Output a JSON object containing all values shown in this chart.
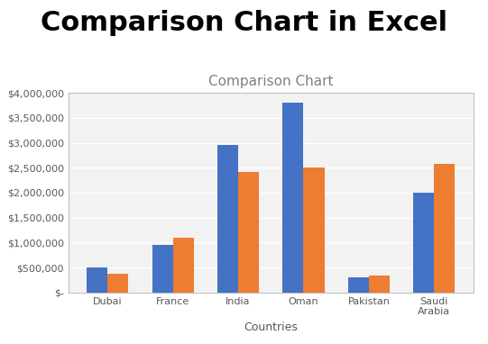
{
  "title_main": "Comparison Chart in Excel",
  "title_chart": "Comparison Chart",
  "xlabel": "Countries",
  "categories": [
    "Dubai",
    "France",
    "India",
    "Oman",
    "Pakistan",
    "Saudi\nArabia"
  ],
  "series1": [
    500000,
    950000,
    2950000,
    3800000,
    300000,
    2000000
  ],
  "series2": [
    380000,
    1100000,
    2420000,
    2500000,
    330000,
    2580000
  ],
  "color1": "#4472C4",
  "color2": "#ED7D31",
  "ylim": [
    0,
    4000000
  ],
  "yticks": [
    0,
    500000,
    1000000,
    1500000,
    2000000,
    2500000,
    3000000,
    3500000,
    4000000
  ],
  "background_color": "#FFFFFF",
  "chart_bg": "#F2F2F2",
  "grid_color": "#FFFFFF",
  "title_main_fontsize": 22,
  "title_chart_fontsize": 11,
  "axis_label_fontsize": 9,
  "tick_fontsize": 8,
  "bar_width": 0.32
}
